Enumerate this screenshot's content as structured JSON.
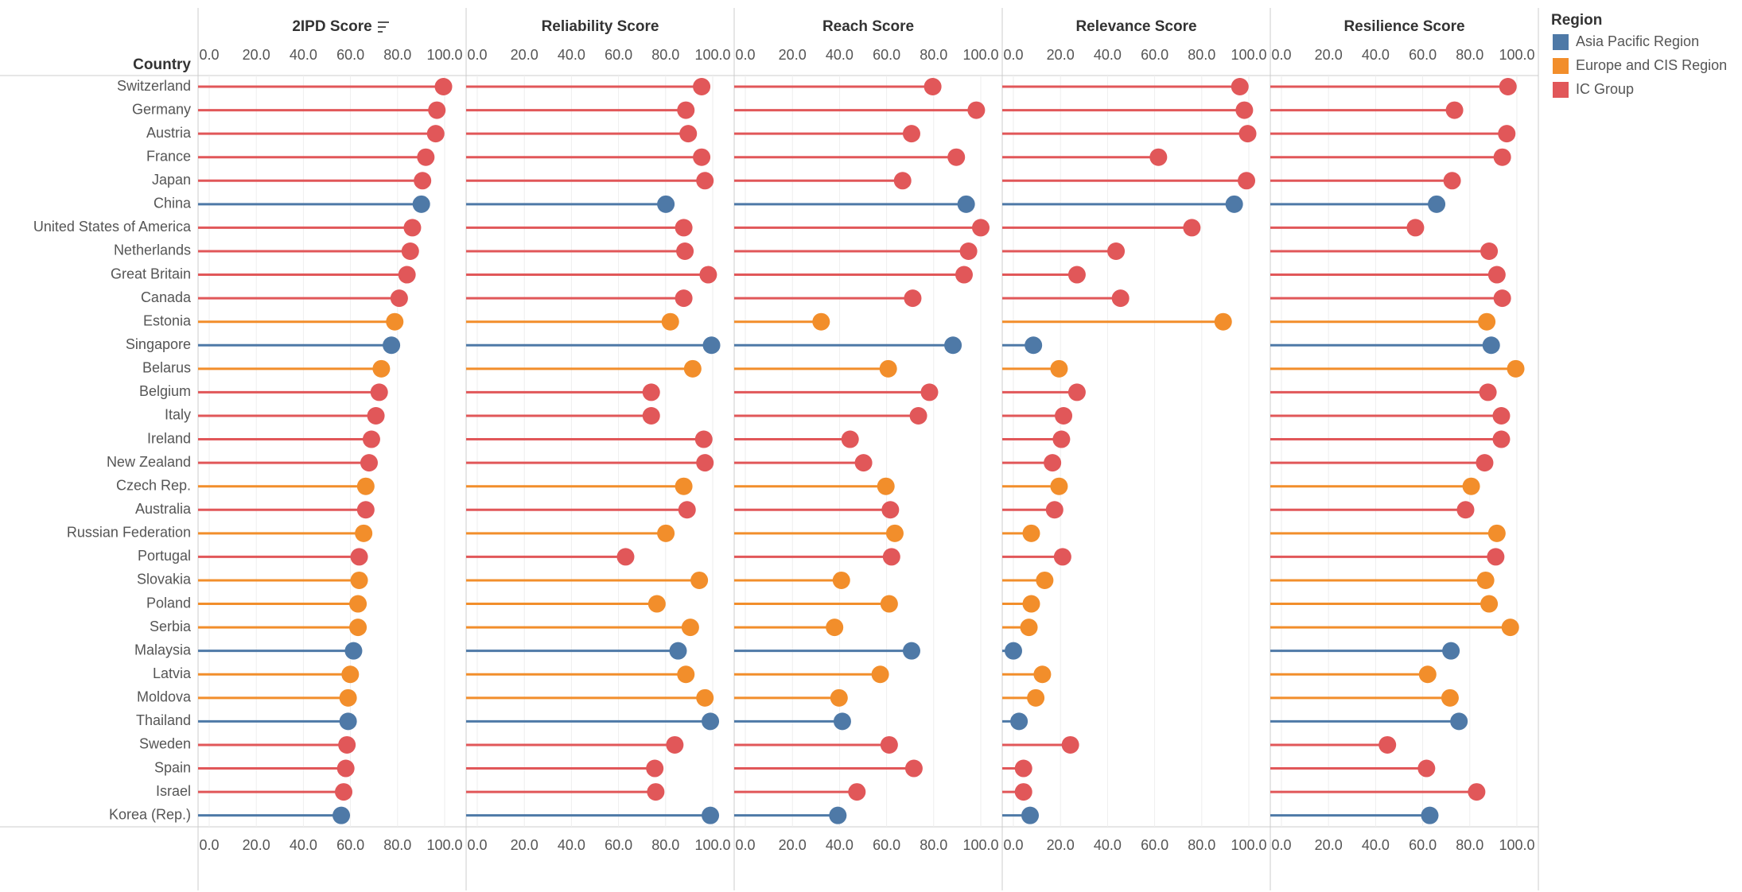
{
  "chart_data": {
    "type": "lollipop",
    "row_header": "Country",
    "categories": [
      "Switzerland",
      "Germany",
      "Austria",
      "France",
      "Japan",
      "China",
      "United States of America",
      "Netherlands",
      "Great Britain",
      "Canada",
      "Estonia",
      "Singapore",
      "Belarus",
      "Belgium",
      "Italy",
      "Ireland",
      "New Zealand",
      "Czech Rep.",
      "Australia",
      "Russian Federation",
      "Portugal",
      "Slovakia",
      "Poland",
      "Serbia",
      "Malaysia",
      "Latvia",
      "Moldova",
      "Thailand",
      "Sweden",
      "Spain",
      "Israel",
      "Korea (Rep.)"
    ],
    "regions": [
      "IC Group",
      "IC Group",
      "IC Group",
      "IC Group",
      "IC Group",
      "Asia Pacific Region",
      "IC Group",
      "IC Group",
      "IC Group",
      "IC Group",
      "Europe and CIS Region",
      "Asia Pacific Region",
      "Europe and CIS Region",
      "IC Group",
      "IC Group",
      "IC Group",
      "IC Group",
      "Europe and CIS Region",
      "IC Group",
      "Europe and CIS Region",
      "IC Group",
      "Europe and CIS Region",
      "Europe and CIS Region",
      "Europe and CIS Region",
      "Asia Pacific Region",
      "Europe and CIS Region",
      "Europe and CIS Region",
      "Asia Pacific Region",
      "IC Group",
      "IC Group",
      "IC Group",
      "Asia Pacific Region"
    ],
    "panels": [
      {
        "title": "2IPD Score",
        "values": [
          99.5,
          96.7,
          96.2,
          92.0,
          90.6,
          90.1,
          86.3,
          85.4,
          84.0,
          80.7,
          78.8,
          77.4,
          73.1,
          72.2,
          70.8,
          68.9,
          67.9,
          66.5,
          66.5,
          65.6,
          63.7,
          63.7,
          63.2,
          63.2,
          61.3,
          59.9,
          59.0,
          59.0,
          58.5,
          58.0,
          57.1,
          56.1
        ]
      },
      {
        "title": "Reliability Score",
        "values": [
          95.3,
          88.6,
          89.6,
          95.3,
          96.7,
          80.1,
          87.7,
          88.2,
          98.1,
          87.7,
          82.0,
          99.5,
          91.5,
          73.9,
          73.9,
          96.2,
          96.7,
          87.7,
          89.1,
          80.1,
          63.0,
          94.3,
          76.3,
          90.5,
          85.3,
          88.6,
          96.7,
          99.0,
          83.9,
          75.4,
          75.8,
          99.0
        ]
      },
      {
        "title": "Reach Score",
        "values": [
          79.6,
          98.1,
          70.6,
          89.6,
          66.8,
          93.8,
          100.0,
          94.8,
          92.9,
          71.1,
          32.2,
          88.2,
          60.7,
          78.2,
          73.5,
          44.5,
          50.2,
          59.7,
          61.6,
          63.5,
          62.1,
          40.8,
          61.1,
          37.9,
          70.6,
          57.3,
          39.8,
          41.2,
          61.1,
          71.6,
          47.4,
          39.3
        ]
      },
      {
        "title": "Relevance Score",
        "values": [
          96.2,
          98.1,
          99.5,
          61.6,
          99.0,
          93.8,
          75.8,
          43.6,
          27.0,
          45.5,
          89.1,
          8.5,
          19.4,
          27.0,
          21.3,
          20.4,
          16.6,
          19.4,
          17.5,
          7.6,
          20.9,
          13.3,
          7.6,
          6.6,
          0.0,
          12.3,
          9.5,
          2.4,
          24.2,
          4.3,
          4.3,
          7.1
        ]
      },
      {
        "title": "Resilience Score",
        "values": [
          96.2,
          73.5,
          95.7,
          93.8,
          72.5,
          65.9,
          56.9,
          88.2,
          91.5,
          93.8,
          87.2,
          89.1,
          99.5,
          87.7,
          93.4,
          93.4,
          86.3,
          80.6,
          78.2,
          91.5,
          91.0,
          86.7,
          88.2,
          97.2,
          72.0,
          62.1,
          71.6,
          75.4,
          45.0,
          61.6,
          82.9,
          63.0
        ]
      }
    ],
    "xlim": [
      0,
      100
    ],
    "xticks": [
      {
        "value": 0,
        "label": "0.0"
      },
      {
        "value": 20,
        "label": "20.0"
      },
      {
        "value": 40,
        "label": "40.0"
      },
      {
        "value": 60,
        "label": "60.0"
      },
      {
        "value": 80,
        "label": "80.0"
      },
      {
        "value": 100,
        "label": "100.0"
      }
    ],
    "grid": true,
    "legend": {
      "title": "Region",
      "items": [
        {
          "name": "Asia Pacific Region",
          "color": "#4e79a7"
        },
        {
          "name": "Europe and CIS Region",
          "color": "#f28e2b"
        },
        {
          "name": "IC Group",
          "color": "#e15759"
        }
      ]
    }
  }
}
